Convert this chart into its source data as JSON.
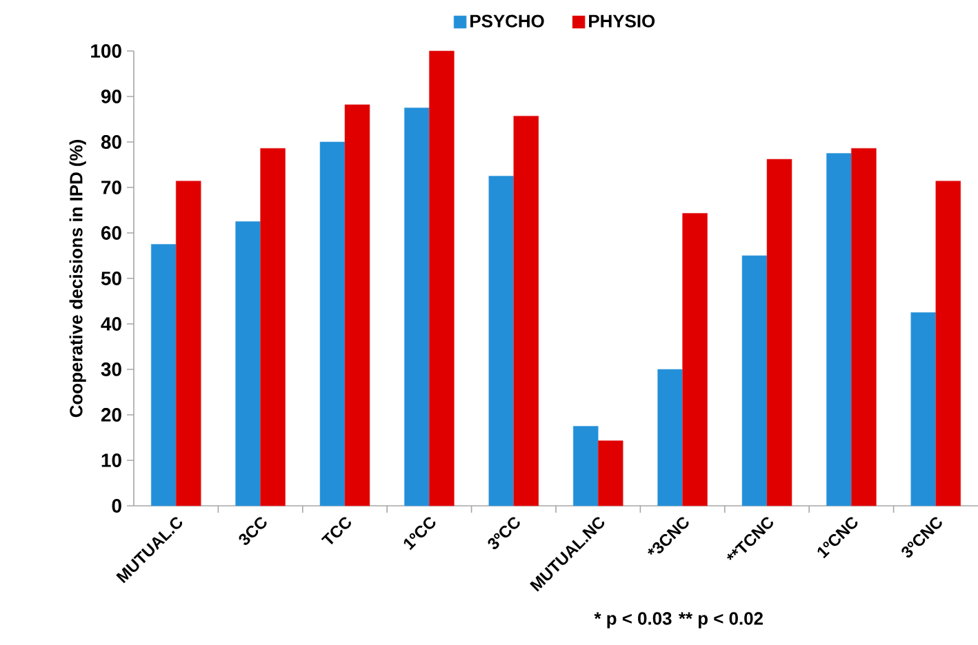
{
  "chart_data": {
    "type": "bar",
    "ylabel": "Cooperative decisions in IPD (%)",
    "categories": [
      "MUTUAL.C",
      "3CC",
      "TCC",
      "1ºCC",
      "3ºCC",
      "MUTUAL.NC",
      "*3CNC",
      "**TCNC",
      "1ºCNC",
      "3ºCNC"
    ],
    "series": [
      {
        "name": "PSYCHO",
        "color": "#238fd8",
        "values": [
          57.5,
          62.5,
          80,
          87.5,
          72.5,
          17.5,
          30,
          55,
          77.5,
          42.5
        ]
      },
      {
        "name": "PHYSIO",
        "color": "#e00000",
        "values": [
          71.4,
          78.6,
          88.2,
          100,
          85.7,
          14.3,
          64.3,
          76.2,
          78.6,
          71.4
        ]
      }
    ],
    "ylim": [
      0,
      100
    ],
    "yticks": [
      0,
      10,
      20,
      30,
      40,
      50,
      60,
      70,
      80,
      90,
      100
    ],
    "legend": "top",
    "annotations": [
      "* p < 0.03",
      "** p < 0.02"
    ]
  }
}
